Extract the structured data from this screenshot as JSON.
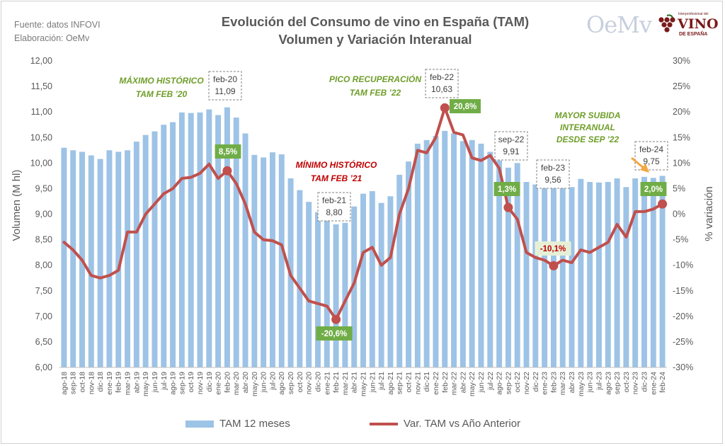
{
  "source": {
    "line1": "Fuente: datos INFOVI",
    "line2": "Elaboración: OeMv"
  },
  "logos": {
    "oemv": "OeMv",
    "vino_small": "Interprofesional del",
    "vino_big": "VINO",
    "vino_sub": "DE ESPAÑA"
  },
  "colors": {
    "bars": "#9dc3e6",
    "line": "#c0504d",
    "green_box": "#70ad47",
    "green_text": "#6f9e2a",
    "red_text": "#c00000"
  },
  "chart_data": {
    "type": "bar+line",
    "title": "Evolución del Consumo de vino en España (TAM)",
    "subtitle": "Volumen y Variación Interanual",
    "ylabel": "Volumen (M hl)",
    "y2label": "% variación",
    "ylim": [
      6.0,
      12.0
    ],
    "y2lim": [
      -30,
      30
    ],
    "yticks": [
      "6,00",
      "6,50",
      "7,00",
      "7,50",
      "8,00",
      "8,50",
      "9,00",
      "9,50",
      "10,00",
      "10,50",
      "11,00",
      "11,50",
      "12,00"
    ],
    "y2ticks": [
      "-30%",
      "-25%",
      "-20%",
      "-15%",
      "-10%",
      "-5%",
      "0%",
      "5%",
      "10%",
      "15%",
      "20%",
      "25%",
      "30%"
    ],
    "categories": [
      "ago-18",
      "sep-18",
      "oct-18",
      "nov-18",
      "dic-18",
      "ene-19",
      "feb-19",
      "mar-19",
      "abr-19",
      "may-19",
      "jun-19",
      "jul-19",
      "ago-19",
      "sep-19",
      "oct-19",
      "nov-19",
      "dic-19",
      "ene-20",
      "feb-20",
      "mar-20",
      "abr-20",
      "may-20",
      "jun-20",
      "jul-20",
      "ago-20",
      "sep-20",
      "oct-20",
      "nov-20",
      "dic-20",
      "ene-21",
      "feb-21",
      "mar-21",
      "abr-21",
      "may-21",
      "jun-21",
      "jul-21",
      "ago-21",
      "sep-21",
      "oct-21",
      "nov-21",
      "dic-21",
      "ene-22",
      "feb-22",
      "mar-22",
      "abr-22",
      "may-22",
      "jun-22",
      "jul-22",
      "ago-22",
      "sep-22",
      "oct-22",
      "nov-22",
      "dic-22",
      "ene-23",
      "feb-23",
      "mar-23",
      "abr-23",
      "may-23",
      "jun-23",
      "jul-23",
      "ago-23",
      "sep-23",
      "oct-23",
      "nov-23",
      "dic-23",
      "ene-24",
      "feb-24"
    ],
    "series": [
      {
        "name": "TAM 12 meses",
        "type": "bar",
        "values": [
          10.3,
          10.25,
          10.22,
          10.15,
          10.08,
          10.25,
          10.22,
          10.25,
          10.42,
          10.55,
          10.62,
          10.75,
          10.8,
          10.99,
          10.98,
          10.99,
          11.05,
          10.94,
          11.09,
          10.89,
          10.58,
          10.16,
          10.11,
          10.21,
          10.17,
          9.7,
          9.47,
          9.24,
          9.04,
          8.95,
          8.8,
          8.83,
          9.15,
          9.4,
          9.45,
          9.22,
          9.35,
          9.77,
          10.03,
          10.38,
          10.45,
          10.53,
          10.63,
          10.58,
          10.43,
          10.45,
          10.38,
          10.22,
          10.05,
          9.91,
          10.0,
          9.63,
          9.58,
          9.57,
          9.56,
          9.56,
          9.53,
          9.69,
          9.63,
          9.62,
          9.63,
          9.7,
          9.53,
          9.7,
          9.73,
          9.71,
          9.75
        ]
      },
      {
        "name": "Var. TAM vs Año Anterior",
        "type": "line",
        "axis": "y2",
        "values": [
          -5.5,
          -7.0,
          -9.0,
          -12.0,
          -12.5,
          -12.0,
          -11.0,
          -3.5,
          -3.5,
          0.0,
          2.0,
          4.0,
          5.0,
          7.0,
          7.2,
          8.0,
          9.8,
          7.0,
          8.5,
          6.0,
          2.0,
          -3.5,
          -5.0,
          -5.2,
          -6.0,
          -12.0,
          -14.5,
          -17.0,
          -17.5,
          -18.0,
          -20.6,
          -17.0,
          -13.5,
          -7.5,
          -6.5,
          -10.0,
          -8.5,
          0.0,
          5.0,
          12.5,
          12.0,
          15.0,
          20.8,
          16.0,
          15.5,
          11.0,
          10.5,
          11.5,
          9.0,
          1.3,
          -1.0,
          -7.5,
          -8.5,
          -9.0,
          -10.1,
          -9.0,
          -9.5,
          -7.0,
          -7.5,
          -6.5,
          -5.5,
          -2.0,
          -4.5,
          0.5,
          0.5,
          1.0,
          2.0
        ]
      }
    ],
    "annotations": {
      "max_hist": "MÁXIMO HISTÓRICO\nTAM FEB ’20",
      "min_hist": "MÍNIMO HISTÓRICO\nTAM FEB ’21",
      "pico": "PICO RECUPERACIÓN\nTAM FEB ’22",
      "mayor": "MAYOR SUBIDA\nINTERANUAL\nDESDE SEP ’22"
    },
    "value_boxes": [
      {
        "label": "feb-20",
        "value": "11,09"
      },
      {
        "label": "feb-21",
        "value": "8,80"
      },
      {
        "label": "feb-22",
        "value": "10,63"
      },
      {
        "label": "sep-22",
        "value": "9,91"
      },
      {
        "label": "feb-23",
        "value": "9,56"
      },
      {
        "label": "feb-24",
        "value": "9,75"
      }
    ],
    "pct_labels": [
      {
        "text": "8,5%",
        "index": 18,
        "style": "green"
      },
      {
        "text": "-20,6%",
        "index": 30,
        "style": "green"
      },
      {
        "text": "20,8%",
        "index": 42,
        "style": "green"
      },
      {
        "text": "1,3%",
        "index": 49,
        "style": "green"
      },
      {
        "text": "-10,1%",
        "index": 54,
        "style": "red"
      },
      {
        "text": "2,0%",
        "index": 66,
        "style": "green"
      }
    ],
    "legend": [
      "TAM 12 meses",
      "Var. TAM vs Año Anterior"
    ]
  }
}
